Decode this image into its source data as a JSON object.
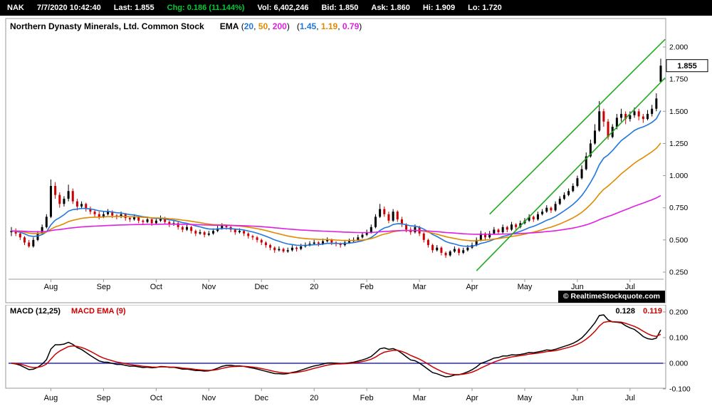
{
  "topbar": {
    "items": [
      {
        "name": "symbol",
        "text": "NAK",
        "color": "#ffffff"
      },
      {
        "name": "datetime",
        "text": "7/7/2020 10:42:40",
        "color": "#ffffff"
      },
      {
        "name": "last",
        "text": "Last: 1.855",
        "color": "#ffffff"
      },
      {
        "name": "change",
        "text": "Chg: 0.186 (11.144%)",
        "color": "#00cc33"
      },
      {
        "name": "volume",
        "text": "Vol: 6,402,246",
        "color": "#ffffff"
      },
      {
        "name": "bid",
        "text": "Bid: 1.850",
        "color": "#ffffff"
      },
      {
        "name": "ask",
        "text": "Ask: 1.860",
        "color": "#ffffff"
      },
      {
        "name": "hi",
        "text": "Hi: 1.909",
        "color": "#ffffff"
      },
      {
        "name": "lo",
        "text": "Lo: 1.720",
        "color": "#ffffff"
      }
    ]
  },
  "main_chart_header": {
    "title": "Northern Dynasty Minerals, Ltd. Common Stock",
    "ema_label": "EMA"
  },
  "macd": {
    "label": "MACD (12,25)",
    "signal_label": "MACD EMA (9)",
    "value": "0.128",
    "signal_value": "0.119",
    "label_color": "#000000",
    "signal_color": "#cc0000"
  },
  "watermark": "© RealtimeStockquote.com",
  "chart_data": [
    {
      "type": "candlestick",
      "title": "Northern Dynasty Minerals, Ltd. Common Stock",
      "ylim": [
        0.25,
        2.0
      ],
      "y_ticks": [
        2.0,
        1.75,
        1.5,
        1.25,
        1.0,
        0.75,
        0.5,
        0.25
      ],
      "last_price": 1.855,
      "up_color": "#000000",
      "down_color": "#cc0000",
      "x_ticks": [
        {
          "label": "Aug",
          "bar": 9
        },
        {
          "label": "Sep",
          "bar": 21
        },
        {
          "label": "Oct",
          "bar": 33
        },
        {
          "label": "Nov",
          "bar": 45
        },
        {
          "label": "Dec",
          "bar": 57
        },
        {
          "label": "20",
          "bar": 69
        },
        {
          "label": "Feb",
          "bar": 81
        },
        {
          "label": "Mar",
          "bar": 93
        },
        {
          "label": "Apr",
          "bar": 105
        },
        {
          "label": "May",
          "bar": 117
        },
        {
          "label": "Jun",
          "bar": 129
        },
        {
          "label": "Jul",
          "bar": 141
        }
      ],
      "overlays": {
        "ema": {
          "periods": [
            "20",
            "50",
            "200"
          ],
          "values_display": [
            "1.45",
            "1.19",
            "0.79"
          ],
          "bar_spans": [
            12,
            30,
            110
          ],
          "colors": [
            "#2277dd",
            "#e08a00",
            "#e020e0"
          ]
        },
        "trend_channel": {
          "color": "#22aa22",
          "lines": [
            {
              "from_bar": 106,
              "from_price": 0.26,
              "to_bar": 149,
              "to_price": 1.76
            },
            {
              "from_bar": 109,
              "from_price": 0.7,
              "to_bar": 149,
              "to_price": 2.06
            }
          ]
        }
      },
      "candles": [
        [
          0.56,
          0.6,
          0.53,
          0.57
        ],
        [
          0.57,
          0.59,
          0.53,
          0.55
        ],
        [
          0.55,
          0.57,
          0.5,
          0.52
        ],
        [
          0.52,
          0.53,
          0.46,
          0.48
        ],
        [
          0.48,
          0.5,
          0.44,
          0.45
        ],
        [
          0.45,
          0.52,
          0.44,
          0.5
        ],
        [
          0.5,
          0.57,
          0.49,
          0.55
        ],
        [
          0.55,
          0.62,
          0.54,
          0.6
        ],
        [
          0.6,
          0.7,
          0.59,
          0.68
        ],
        [
          0.68,
          0.97,
          0.67,
          0.92
        ],
        [
          0.92,
          0.95,
          0.82,
          0.85
        ],
        [
          0.85,
          0.87,
          0.75,
          0.78
        ],
        [
          0.78,
          0.84,
          0.76,
          0.82
        ],
        [
          0.82,
          0.93,
          0.8,
          0.88
        ],
        [
          0.88,
          0.9,
          0.78,
          0.8
        ],
        [
          0.8,
          0.82,
          0.73,
          0.76
        ],
        [
          0.76,
          0.8,
          0.74,
          0.78
        ],
        [
          0.78,
          0.79,
          0.72,
          0.74
        ],
        [
          0.74,
          0.76,
          0.7,
          0.72
        ],
        [
          0.72,
          0.74,
          0.68,
          0.7
        ],
        [
          0.7,
          0.72,
          0.66,
          0.68
        ],
        [
          0.68,
          0.72,
          0.67,
          0.7
        ],
        [
          0.7,
          0.74,
          0.69,
          0.72
        ],
        [
          0.72,
          0.73,
          0.67,
          0.69
        ],
        [
          0.69,
          0.7,
          0.66,
          0.68
        ],
        [
          0.68,
          0.72,
          0.67,
          0.7
        ],
        [
          0.7,
          0.71,
          0.65,
          0.67
        ],
        [
          0.67,
          0.68,
          0.64,
          0.66
        ],
        [
          0.66,
          0.7,
          0.65,
          0.68
        ],
        [
          0.68,
          0.69,
          0.63,
          0.65
        ],
        [
          0.65,
          0.66,
          0.62,
          0.64
        ],
        [
          0.64,
          0.68,
          0.63,
          0.66
        ],
        [
          0.66,
          0.67,
          0.61,
          0.63
        ],
        [
          0.63,
          0.67,
          0.62,
          0.65
        ],
        [
          0.65,
          0.69,
          0.64,
          0.67
        ],
        [
          0.67,
          0.68,
          0.62,
          0.64
        ],
        [
          0.64,
          0.65,
          0.6,
          0.62
        ],
        [
          0.62,
          0.65,
          0.61,
          0.63
        ],
        [
          0.63,
          0.64,
          0.58,
          0.6
        ],
        [
          0.6,
          0.61,
          0.56,
          0.58
        ],
        [
          0.58,
          0.62,
          0.57,
          0.6
        ],
        [
          0.6,
          0.61,
          0.55,
          0.57
        ],
        [
          0.57,
          0.58,
          0.53,
          0.55
        ],
        [
          0.55,
          0.58,
          0.54,
          0.56
        ],
        [
          0.56,
          0.57,
          0.52,
          0.54
        ],
        [
          0.54,
          0.57,
          0.53,
          0.55
        ],
        [
          0.55,
          0.59,
          0.54,
          0.57
        ],
        [
          0.57,
          0.61,
          0.56,
          0.59
        ],
        [
          0.59,
          0.63,
          0.58,
          0.61
        ],
        [
          0.61,
          0.62,
          0.58,
          0.6
        ],
        [
          0.6,
          0.61,
          0.56,
          0.58
        ],
        [
          0.58,
          0.59,
          0.54,
          0.56
        ],
        [
          0.56,
          0.59,
          0.55,
          0.57
        ],
        [
          0.57,
          0.58,
          0.53,
          0.55
        ],
        [
          0.55,
          0.56,
          0.51,
          0.53
        ],
        [
          0.53,
          0.54,
          0.5,
          0.52
        ],
        [
          0.52,
          0.53,
          0.48,
          0.5
        ],
        [
          0.5,
          0.51,
          0.46,
          0.48
        ],
        [
          0.48,
          0.49,
          0.44,
          0.46
        ],
        [
          0.46,
          0.47,
          0.42,
          0.44
        ],
        [
          0.44,
          0.45,
          0.4,
          0.42
        ],
        [
          0.42,
          0.45,
          0.41,
          0.43
        ],
        [
          0.43,
          0.44,
          0.4,
          0.41
        ],
        [
          0.41,
          0.44,
          0.4,
          0.42
        ],
        [
          0.42,
          0.46,
          0.41,
          0.44
        ],
        [
          0.44,
          0.45,
          0.41,
          0.43
        ],
        [
          0.43,
          0.47,
          0.42,
          0.45
        ],
        [
          0.45,
          0.48,
          0.44,
          0.46
        ],
        [
          0.46,
          0.49,
          0.45,
          0.47
        ],
        [
          0.47,
          0.5,
          0.46,
          0.48
        ],
        [
          0.48,
          0.49,
          0.45,
          0.47
        ],
        [
          0.47,
          0.51,
          0.46,
          0.49
        ],
        [
          0.49,
          0.52,
          0.48,
          0.5
        ],
        [
          0.5,
          0.51,
          0.46,
          0.48
        ],
        [
          0.48,
          0.49,
          0.45,
          0.47
        ],
        [
          0.47,
          0.48,
          0.44,
          0.46
        ],
        [
          0.46,
          0.5,
          0.45,
          0.48
        ],
        [
          0.48,
          0.51,
          0.47,
          0.49
        ],
        [
          0.49,
          0.52,
          0.48,
          0.5
        ],
        [
          0.5,
          0.54,
          0.49,
          0.52
        ],
        [
          0.52,
          0.56,
          0.51,
          0.54
        ],
        [
          0.54,
          0.58,
          0.53,
          0.56
        ],
        [
          0.56,
          0.62,
          0.55,
          0.6
        ],
        [
          0.6,
          0.7,
          0.59,
          0.68
        ],
        [
          0.68,
          0.78,
          0.67,
          0.74
        ],
        [
          0.74,
          0.76,
          0.68,
          0.7
        ],
        [
          0.7,
          0.72,
          0.63,
          0.65
        ],
        [
          0.65,
          0.74,
          0.64,
          0.72
        ],
        [
          0.72,
          0.73,
          0.64,
          0.66
        ],
        [
          0.66,
          0.68,
          0.6,
          0.62
        ],
        [
          0.62,
          0.63,
          0.56,
          0.58
        ],
        [
          0.58,
          0.6,
          0.54,
          0.56
        ],
        [
          0.56,
          0.62,
          0.55,
          0.6
        ],
        [
          0.6,
          0.61,
          0.53,
          0.55
        ],
        [
          0.55,
          0.56,
          0.48,
          0.5
        ],
        [
          0.5,
          0.51,
          0.44,
          0.46
        ],
        [
          0.46,
          0.47,
          0.4,
          0.42
        ],
        [
          0.42,
          0.46,
          0.41,
          0.44
        ],
        [
          0.44,
          0.45,
          0.38,
          0.4
        ],
        [
          0.4,
          0.41,
          0.36,
          0.38
        ],
        [
          0.38,
          0.42,
          0.37,
          0.41
        ],
        [
          0.41,
          0.45,
          0.4,
          0.43
        ],
        [
          0.43,
          0.44,
          0.38,
          0.4
        ],
        [
          0.4,
          0.44,
          0.39,
          0.42
        ],
        [
          0.42,
          0.46,
          0.41,
          0.44
        ],
        [
          0.44,
          0.48,
          0.43,
          0.46
        ],
        [
          0.46,
          0.52,
          0.45,
          0.5
        ],
        [
          0.5,
          0.57,
          0.49,
          0.55
        ],
        [
          0.55,
          0.56,
          0.5,
          0.52
        ],
        [
          0.52,
          0.57,
          0.51,
          0.55
        ],
        [
          0.55,
          0.6,
          0.54,
          0.58
        ],
        [
          0.58,
          0.59,
          0.54,
          0.56
        ],
        [
          0.56,
          0.62,
          0.55,
          0.6
        ],
        [
          0.6,
          0.61,
          0.56,
          0.58
        ],
        [
          0.58,
          0.64,
          0.57,
          0.62
        ],
        [
          0.62,
          0.63,
          0.58,
          0.6
        ],
        [
          0.6,
          0.65,
          0.59,
          0.63
        ],
        [
          0.63,
          0.67,
          0.62,
          0.65
        ],
        [
          0.65,
          0.7,
          0.64,
          0.68
        ],
        [
          0.68,
          0.69,
          0.64,
          0.66
        ],
        [
          0.66,
          0.72,
          0.65,
          0.7
        ],
        [
          0.7,
          0.74,
          0.69,
          0.72
        ],
        [
          0.72,
          0.77,
          0.71,
          0.75
        ],
        [
          0.75,
          0.76,
          0.71,
          0.73
        ],
        [
          0.73,
          0.8,
          0.72,
          0.78
        ],
        [
          0.78,
          0.84,
          0.77,
          0.82
        ],
        [
          0.82,
          0.87,
          0.81,
          0.85
        ],
        [
          0.85,
          0.9,
          0.84,
          0.88
        ],
        [
          0.88,
          0.94,
          0.87,
          0.92
        ],
        [
          0.92,
          1.0,
          0.91,
          0.98
        ],
        [
          0.98,
          1.08,
          0.97,
          1.05
        ],
        [
          1.05,
          1.18,
          1.04,
          1.15
        ],
        [
          1.15,
          1.28,
          1.14,
          1.25
        ],
        [
          1.25,
          1.4,
          1.24,
          1.35
        ],
        [
          1.35,
          1.58,
          1.34,
          1.5
        ],
        [
          1.5,
          1.52,
          1.38,
          1.42
        ],
        [
          1.42,
          1.44,
          1.28,
          1.3
        ],
        [
          1.3,
          1.4,
          1.29,
          1.38
        ],
        [
          1.38,
          1.48,
          1.36,
          1.45
        ],
        [
          1.45,
          1.52,
          1.42,
          1.48
        ],
        [
          1.48,
          1.5,
          1.4,
          1.44
        ],
        [
          1.44,
          1.5,
          1.42,
          1.47
        ],
        [
          1.47,
          1.53,
          1.45,
          1.5
        ],
        [
          1.5,
          1.52,
          1.43,
          1.46
        ],
        [
          1.46,
          1.48,
          1.41,
          1.44
        ],
        [
          1.44,
          1.51,
          1.43,
          1.48
        ],
        [
          1.48,
          1.55,
          1.46,
          1.52
        ],
        [
          1.52,
          1.64,
          1.5,
          1.6
        ],
        [
          1.73,
          1.909,
          1.72,
          1.855
        ]
      ]
    },
    {
      "type": "line",
      "title": "MACD (12,25)",
      "series_labels": [
        "MACD (12,25)",
        "MACD EMA (9)"
      ],
      "values_display": [
        "0.128",
        "0.119"
      ],
      "params": {
        "fast": 12,
        "slow": 25,
        "signal": 9,
        "bar_spans": [
          7,
          15,
          5
        ]
      },
      "y_ticks": [
        0.2,
        0.1,
        0.0,
        -0.1
      ],
      "colors": {
        "macd": "#000000",
        "signal": "#cc0000",
        "zero": "#2929cc"
      }
    }
  ]
}
